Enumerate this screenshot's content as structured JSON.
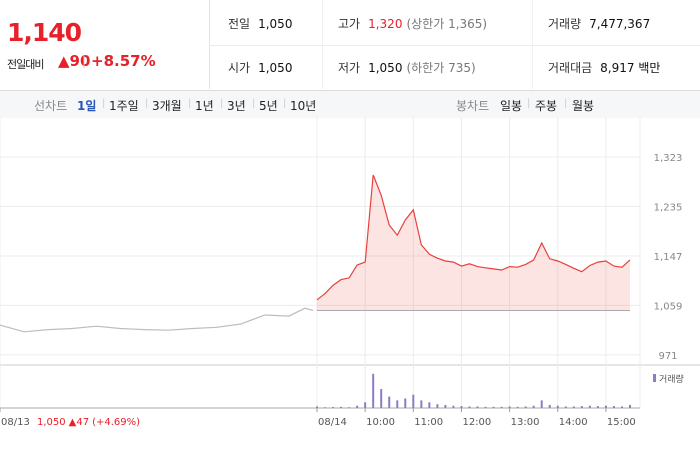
{
  "header": {
    "price": "1,140",
    "change_label": "전일대비",
    "change": "▲90",
    "rate": "+8.57%"
  },
  "stats": {
    "rows": [
      [
        {
          "label": "전일",
          "value": "1,050"
        },
        {
          "label": "고가",
          "value": "1,320",
          "note": "(상한가 1,365)"
        },
        {
          "label": "거래량",
          "value": "7,477,367"
        }
      ],
      [
        {
          "label": "시가",
          "value": "1,050"
        },
        {
          "label": "저가",
          "value": "1,050",
          "note": "(하한가 735)"
        },
        {
          "label": "거래대금",
          "value": "8,917 백만"
        }
      ]
    ]
  },
  "tabs": {
    "line_label": "선차트",
    "periods": [
      "1일",
      "1주일",
      "3개월",
      "1년",
      "3년",
      "5년",
      "10년"
    ],
    "candle_label": "봉차트",
    "candles": [
      "일봉",
      "주봉",
      "월봉"
    ]
  },
  "chart_data": {
    "type": "line",
    "ylim": [
      953,
      1380
    ],
    "yticks": [
      {
        "value": 1323,
        "label": "1,323"
      },
      {
        "value": 1235,
        "label": "1,235"
      },
      {
        "value": 1147,
        "label": "1,147"
      },
      {
        "value": 1059,
        "label": "1,059"
      },
      {
        "value": 971,
        "label": "971"
      }
    ],
    "xticks": [
      {
        "value": "08/13 09:00",
        "label": "08/13"
      },
      {
        "value": "08/14 09:00",
        "label": "08/14"
      },
      {
        "value": "08/14 10:00",
        "label": "10:00"
      },
      {
        "value": "08/14 11:00",
        "label": "11:00"
      },
      {
        "value": "08/14 12:00",
        "label": "12:00"
      },
      {
        "value": "08/14 13:00",
        "label": "13:00"
      },
      {
        "value": "08/14 14:00",
        "label": "14:00"
      },
      {
        "value": "08/14 15:00",
        "label": "15:00"
      }
    ],
    "grid": true,
    "baseline": 1050,
    "prev_summary": {
      "close": "1,050",
      "change": "▲47",
      "rate": "(+4.69%)"
    },
    "series": [
      {
        "color": "#bdbdbd",
        "area": false,
        "x": [
          "08/13 09:00",
          "08/13 09:30",
          "08/13 10:00",
          "08/13 10:30",
          "08/13 11:00",
          "08/13 11:30",
          "08/13 12:00",
          "08/13 12:30",
          "08/13 13:00",
          "08/13 13:30",
          "08/13 14:00",
          "08/13 14:30",
          "08/13 15:00",
          "08/13 15:20",
          "08/13 15:30"
        ],
        "values": [
          1024,
          1012,
          1016,
          1018,
          1022,
          1018,
          1016,
          1015,
          1018,
          1020,
          1026,
          1042,
          1040,
          1054,
          1050
        ]
      },
      {
        "color": "#e8403c",
        "area": true,
        "x": [
          "08/14 09:00",
          "08/14 09:10",
          "08/14 09:20",
          "08/14 09:30",
          "08/14 09:40",
          "08/14 09:50",
          "08/14 10:00",
          "08/14 10:10",
          "08/14 10:20",
          "08/14 10:30",
          "08/14 10:40",
          "08/14 10:50",
          "08/14 11:00",
          "08/14 11:10",
          "08/14 11:20",
          "08/14 11:30",
          "08/14 11:40",
          "08/14 11:50",
          "08/14 12:00",
          "08/14 12:10",
          "08/14 12:20",
          "08/14 12:30",
          "08/14 12:40",
          "08/14 12:50",
          "08/14 13:00",
          "08/14 13:10",
          "08/14 13:20",
          "08/14 13:30",
          "08/14 13:40",
          "08/14 13:50",
          "08/14 14:00",
          "08/14 14:10",
          "08/14 14:20",
          "08/14 14:30",
          "08/14 14:40",
          "08/14 14:50",
          "08/14 15:00",
          "08/14 15:10",
          "08/14 15:20",
          "08/14 15:30"
        ],
        "values": [
          1069,
          1080,
          1095,
          1105,
          1108,
          1131,
          1136,
          1291,
          1255,
          1202,
          1184,
          1211,
          1229,
          1167,
          1150,
          1143,
          1138,
          1136,
          1129,
          1133,
          1128,
          1126,
          1124,
          1122,
          1128,
          1127,
          1132,
          1140,
          1170,
          1142,
          1138,
          1132,
          1125,
          1119,
          1130,
          1136,
          1138,
          1129,
          1127,
          1140
        ]
      }
    ],
    "volume": {
      "name": "거래량",
      "color": "#8e7cc3",
      "ylim": [
        0,
        1000000
      ],
      "x": [
        "08/14 09:00",
        "08/14 09:10",
        "08/14 09:20",
        "08/14 09:30",
        "08/14 09:40",
        "08/14 09:50",
        "08/14 10:00",
        "08/14 10:10",
        "08/14 10:20",
        "08/14 10:30",
        "08/14 10:40",
        "08/14 10:50",
        "08/14 11:00",
        "08/14 11:10",
        "08/14 11:20",
        "08/14 11:30",
        "08/14 11:40",
        "08/14 11:50",
        "08/14 12:00",
        "08/14 12:10",
        "08/14 12:20",
        "08/14 12:30",
        "08/14 12:40",
        "08/14 12:50",
        "08/14 13:00",
        "08/14 13:10",
        "08/14 13:20",
        "08/14 13:30",
        "08/14 13:40",
        "08/14 13:50",
        "08/14 14:00",
        "08/14 14:10",
        "08/14 14:20",
        "08/14 14:30",
        "08/14 14:40",
        "08/14 14:50",
        "08/14 15:00",
        "08/14 15:10",
        "08/14 15:20",
        "08/14 15:30"
      ],
      "values": [
        40000,
        20000,
        25000,
        30000,
        20000,
        60000,
        150000,
        900000,
        500000,
        300000,
        200000,
        250000,
        350000,
        200000,
        150000,
        100000,
        80000,
        60000,
        50000,
        40000,
        40000,
        30000,
        30000,
        30000,
        40000,
        30000,
        40000,
        60000,
        200000,
        80000,
        60000,
        40000,
        40000,
        50000,
        60000,
        50000,
        60000,
        50000,
        40000,
        80000
      ]
    }
  }
}
